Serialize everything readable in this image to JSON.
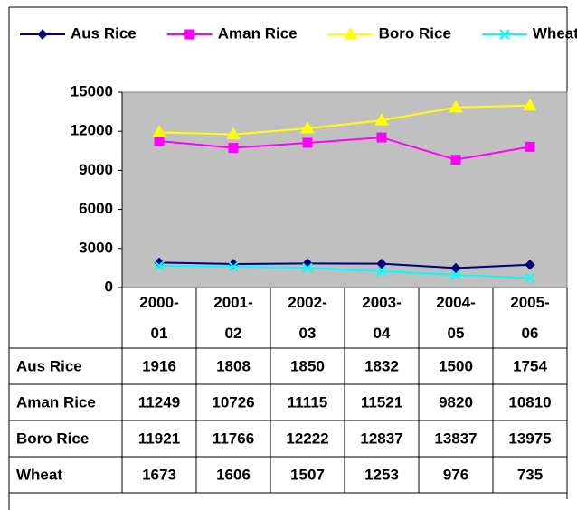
{
  "chart_data": {
    "type": "line",
    "categories": [
      "2000-01",
      "2001-02",
      "2002-03",
      "2003-04",
      "2004-05",
      "2005-06"
    ],
    "series": [
      {
        "name": "Aus Rice",
        "color": "#000080",
        "marker": "diamond",
        "values": [
          1916,
          1808,
          1850,
          1832,
          1500,
          1754
        ]
      },
      {
        "name": "Aman Rice",
        "color": "#ff00ff",
        "marker": "square",
        "values": [
          11249,
          10726,
          11115,
          11521,
          9820,
          10810
        ]
      },
      {
        "name": "Boro Rice",
        "color": "#ffff00",
        "marker": "triangle",
        "values": [
          11921,
          11766,
          12222,
          12837,
          13837,
          13975
        ]
      },
      {
        "name": "Wheat",
        "color": "#00ffff",
        "marker": "x",
        "values": [
          1673,
          1606,
          1507,
          1253,
          976,
          735
        ]
      }
    ],
    "ylim": [
      0,
      15000
    ],
    "yticks": [
      0,
      3000,
      6000,
      9000,
      12000,
      15000
    ],
    "plot_background": "#c0c0c0"
  }
}
